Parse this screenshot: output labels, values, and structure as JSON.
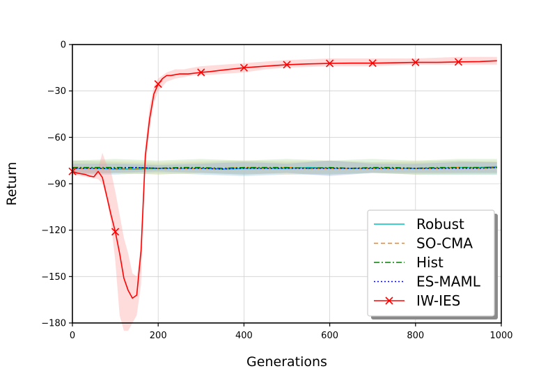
{
  "chart_data": {
    "type": "line",
    "title": "",
    "xlabel": "Generations",
    "ylabel": "Return",
    "xlim": [
      0,
      1000
    ],
    "ylim": [
      -180,
      0
    ],
    "xticks": [
      0,
      200,
      400,
      600,
      800,
      1000
    ],
    "yticks": [
      0,
      -30,
      -60,
      -90,
      -120,
      -150,
      -180
    ],
    "xtick_labels": [
      "0",
      "200",
      "400",
      "600",
      "800",
      "1000"
    ],
    "ytick_labels": [
      "0",
      "−30",
      "−60",
      "−90",
      "−120",
      "−150",
      "−180"
    ],
    "grid": true,
    "legend_position": "lower-right",
    "bands": [
      {
        "series": "Robust",
        "color": "#b0d6e6",
        "opacity": 0.55,
        "x": [
          0,
          100,
          200,
          300,
          400,
          500,
          600,
          700,
          800,
          900,
          990
        ],
        "upper": [
          -75,
          -76,
          -77,
          -76,
          -75,
          -76,
          -75,
          -76,
          -76,
          -75,
          -76
        ],
        "lower": [
          -84,
          -84,
          -83,
          -84,
          -85,
          -84,
          -84,
          -83,
          -84,
          -84,
          -84
        ]
      },
      {
        "series": "SO-CMA",
        "color": "#ffd8a0",
        "opacity": 0.35,
        "x": [
          0,
          100,
          200,
          300,
          400,
          500,
          600,
          700,
          800,
          900,
          990
        ],
        "upper": [
          -75,
          -75,
          -76,
          -75,
          -75,
          -75,
          -75,
          -76,
          -75,
          -75,
          -75
        ],
        "lower": [
          -83,
          -83,
          -84,
          -83,
          -83,
          -84,
          -83,
          -83,
          -84,
          -83,
          -83
        ]
      },
      {
        "series": "Hist",
        "color": "#b6e2b0",
        "opacity": 0.4,
        "x": [
          0,
          100,
          200,
          300,
          400,
          500,
          600,
          700,
          800,
          900,
          990
        ],
        "upper": [
          -75,
          -74,
          -75,
          -74,
          -75,
          -74,
          -75,
          -74,
          -75,
          -74,
          -74
        ],
        "lower": [
          -84,
          -83,
          -84,
          -83,
          -84,
          -83,
          -84,
          -83,
          -84,
          -84,
          -84
        ]
      },
      {
        "series": "ES-MAML",
        "color": "#9aa8d8",
        "opacity": 0.35,
        "x": [
          0,
          100,
          200,
          300,
          400,
          500,
          600,
          700,
          800,
          900,
          990
        ],
        "upper": [
          -77,
          -77,
          -78,
          -77,
          -76,
          -77,
          -75,
          -77,
          -77,
          -76,
          -76
        ],
        "lower": [
          -83,
          -83,
          -82,
          -83,
          -84,
          -83,
          -85,
          -83,
          -83,
          -83,
          -83
        ]
      },
      {
        "series": "IW-IES",
        "color": "#ff9c9c",
        "opacity": 0.35,
        "x": [
          0,
          20,
          40,
          60,
          70,
          80,
          90,
          100,
          110,
          120,
          130,
          140,
          150,
          160,
          170,
          180,
          190,
          200,
          220,
          240,
          260,
          280,
          300,
          350,
          400,
          450,
          500,
          600,
          700,
          800,
          900,
          990
        ],
        "upper": [
          -78,
          -79,
          -80,
          -80,
          -70,
          -78,
          -82,
          -95,
          -110,
          -125,
          -135,
          -148,
          -150,
          -130,
          -65,
          -40,
          -27,
          -22,
          -18,
          -16,
          -16,
          -15,
          -14,
          -13,
          -12,
          -11,
          -10,
          -9,
          -9,
          -9,
          -8,
          -8
        ],
        "lower": [
          -84,
          -85,
          -86,
          -87,
          -90,
          -100,
          -115,
          -140,
          -175,
          -185,
          -185,
          -180,
          -175,
          -155,
          -80,
          -55,
          -38,
          -30,
          -24,
          -22,
          -21,
          -20,
          -20,
          -19,
          -18,
          -16,
          -15,
          -14,
          -14,
          -13,
          -13,
          -13
        ]
      }
    ],
    "series": [
      {
        "name": "Robust",
        "color": "#00bfbf",
        "style": "solid",
        "marker": "",
        "x": [
          0,
          50,
          100,
          150,
          200,
          250,
          300,
          350,
          400,
          450,
          500,
          550,
          600,
          650,
          700,
          750,
          800,
          850,
          900,
          950,
          990
        ],
        "y": [
          -80,
          -80,
          -80.5,
          -80.5,
          -80,
          -80,
          -80,
          -80.5,
          -80,
          -80,
          -80,
          -79.5,
          -80,
          -80,
          -80,
          -80,
          -80,
          -80,
          -79.5,
          -79.5,
          -79
        ]
      },
      {
        "name": "SO-CMA",
        "color": "#ff8000",
        "style": "dashed",
        "marker": "",
        "x": [
          0,
          50,
          100,
          150,
          200,
          250,
          300,
          350,
          400,
          450,
          500,
          550,
          600,
          650,
          700,
          750,
          800,
          850,
          900,
          950,
          990
        ],
        "y": [
          -80,
          -80,
          -80,
          -80,
          -80,
          -80,
          -80,
          -80,
          -79.5,
          -80,
          -79.5,
          -80,
          -80,
          -80,
          -80,
          -80,
          -80,
          -80,
          -79.5,
          -80,
          -79.5
        ]
      },
      {
        "name": "Hist",
        "color": "#008000",
        "style": "dashdot",
        "marker": "",
        "x": [
          0,
          50,
          100,
          150,
          200,
          250,
          300,
          350,
          400,
          450,
          500,
          550,
          600,
          650,
          700,
          750,
          800,
          850,
          900,
          950,
          990
        ],
        "y": [
          -79.5,
          -79.5,
          -79.5,
          -79.5,
          -80,
          -79.5,
          -79.5,
          -80,
          -79.5,
          -79.5,
          -79.5,
          -80,
          -79.5,
          -80,
          -79.5,
          -79.5,
          -80,
          -79.5,
          -79.5,
          -79.5,
          -79.5
        ]
      },
      {
        "name": "ES-MAML",
        "color": "#0000ff",
        "style": "dotted",
        "marker": "",
        "x": [
          0,
          50,
          100,
          150,
          200,
          250,
          300,
          350,
          400,
          450,
          500,
          550,
          600,
          650,
          700,
          750,
          800,
          850,
          900,
          950,
          990
        ],
        "y": [
          -80,
          -80,
          -80,
          -79.5,
          -80,
          -80,
          -80,
          -80.5,
          -80,
          -80,
          -80,
          -80,
          -80,
          -80,
          -80,
          -80,
          -80,
          -80,
          -80,
          -80,
          -79.5
        ]
      },
      {
        "name": "IW-IES",
        "color": "#ff0000",
        "style": "solid",
        "marker": "x",
        "x": [
          0,
          10,
          20,
          30,
          40,
          50,
          60,
          70,
          80,
          90,
          100,
          110,
          120,
          130,
          140,
          150,
          160,
          170,
          180,
          190,
          200,
          210,
          220,
          230,
          250,
          270,
          300,
          320,
          350,
          400,
          450,
          500,
          550,
          600,
          650,
          700,
          750,
          800,
          850,
          900,
          950,
          990
        ],
        "y": [
          -82,
          -83,
          -83.5,
          -84,
          -85,
          -85.5,
          -82,
          -86,
          -98,
          -110,
          -121,
          -135,
          -151,
          -159,
          -164,
          -162,
          -133,
          -72,
          -48,
          -32,
          -25.5,
          -22,
          -20,
          -20,
          -19,
          -19,
          -18,
          -17.5,
          -16.5,
          -15,
          -14,
          -13,
          -12.5,
          -12.2,
          -12,
          -12,
          -11.8,
          -11.5,
          -11.5,
          -11.2,
          -11,
          -10.5
        ]
      }
    ],
    "markers": {
      "IW-IES": {
        "x": [
          0,
          100,
          200,
          300,
          400,
          500,
          600,
          700,
          800,
          900
        ],
        "y": [
          -82,
          -121,
          -25.5,
          -18,
          -15,
          -13,
          -12.2,
          -12,
          -11.5,
          -11.2
        ]
      }
    },
    "legend": [
      {
        "label": "Robust",
        "color": "#00bfbf",
        "style": "solid",
        "marker": ""
      },
      {
        "label": "SO-CMA",
        "color": "#ff8000",
        "style": "dashed",
        "marker": ""
      },
      {
        "label": "Hist",
        "color": "#008000",
        "style": "dashdot",
        "marker": ""
      },
      {
        "label": "ES-MAML",
        "color": "#0000ff",
        "style": "dotted",
        "marker": ""
      },
      {
        "label": "IW-IES",
        "color": "#ff0000",
        "style": "solid",
        "marker": "x"
      }
    ]
  }
}
